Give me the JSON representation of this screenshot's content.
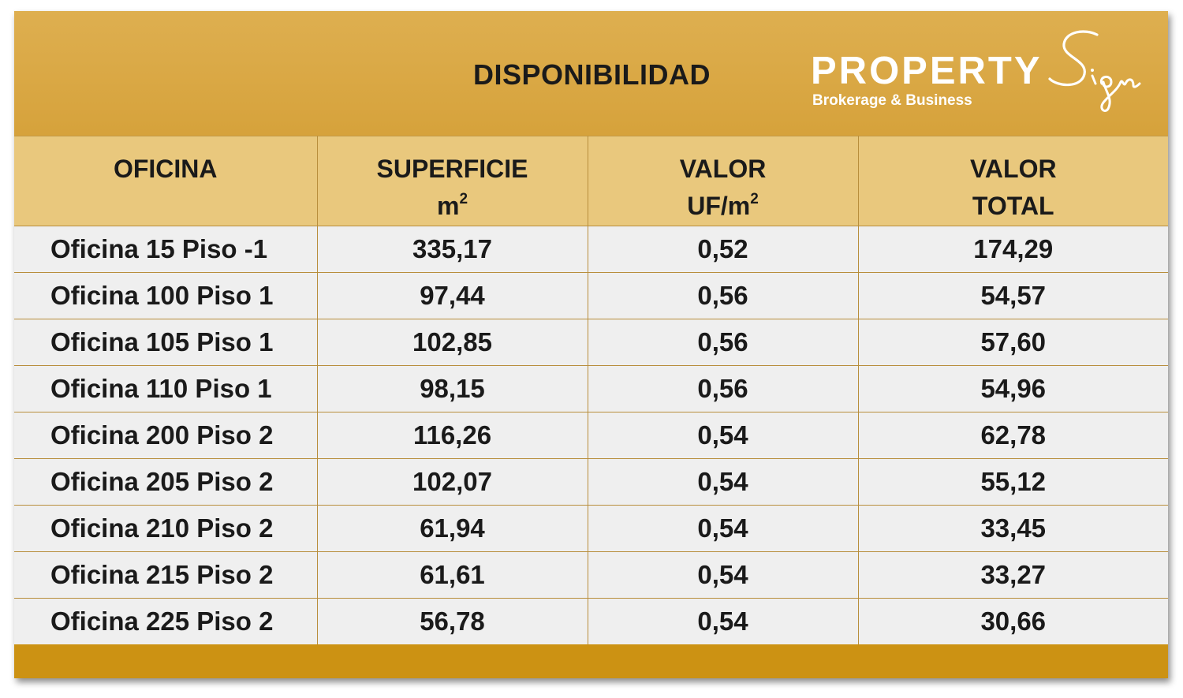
{
  "banner": {
    "title": "DISPONIBILIDAD"
  },
  "logo": {
    "main": "PROPERTY",
    "script": "Sign",
    "sub": "Brokerage & Business"
  },
  "colors": {
    "banner": "#d9a847",
    "header_row": "#e9c87d",
    "body_row": "#efefef",
    "footer": "#cc9213",
    "grid": "#b88e3c"
  },
  "table": {
    "headers": [
      {
        "line1": "OFICINA",
        "line2": "",
        "sup": ""
      },
      {
        "line1": "SUPERFICIE",
        "line2": "m",
        "sup": "2"
      },
      {
        "line1": "VALOR",
        "line2": "UF/m",
        "sup": "2"
      },
      {
        "line1": "VALOR",
        "line2": "TOTAL",
        "sup": ""
      }
    ],
    "rows": [
      {
        "oficina": "Oficina 15 Piso -1",
        "superficie": "335,17",
        "valor_uf_m2": "0,52",
        "valor_total": "174,29"
      },
      {
        "oficina": "Oficina 100 Piso 1",
        "superficie": "97,44",
        "valor_uf_m2": "0,56",
        "valor_total": "54,57"
      },
      {
        "oficina": "Oficina 105 Piso 1",
        "superficie": "102,85",
        "valor_uf_m2": "0,56",
        "valor_total": "57,60"
      },
      {
        "oficina": "Oficina 110 Piso 1",
        "superficie": "98,15",
        "valor_uf_m2": "0,56",
        "valor_total": "54,96"
      },
      {
        "oficina": "Oficina 200 Piso 2",
        "superficie": "116,26",
        "valor_uf_m2": "0,54",
        "valor_total": "62,78"
      },
      {
        "oficina": "Oficina 205 Piso 2",
        "superficie": "102,07",
        "valor_uf_m2": "0,54",
        "valor_total": "55,12"
      },
      {
        "oficina": "Oficina 210 Piso 2",
        "superficie": "61,94",
        "valor_uf_m2": "0,54",
        "valor_total": "33,45"
      },
      {
        "oficina": "Oficina 215 Piso 2",
        "superficie": "61,61",
        "valor_uf_m2": "0,54",
        "valor_total": "33,27"
      },
      {
        "oficina": "Oficina 225 Piso 2",
        "superficie": "56,78",
        "valor_uf_m2": "0,54",
        "valor_total": "30,66"
      }
    ]
  }
}
